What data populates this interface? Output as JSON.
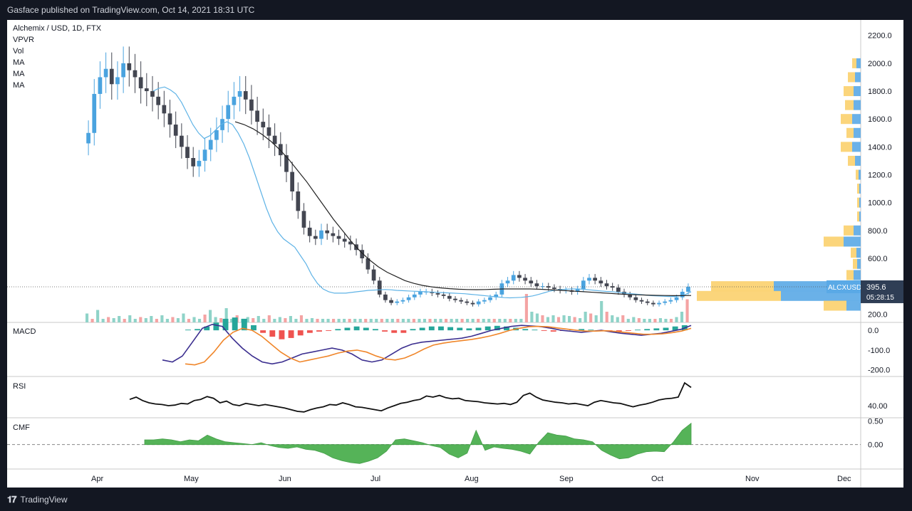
{
  "header": {
    "publisher_line": "Gasface published on TradingView.com, Oct 14, 2021 18:31 UTC"
  },
  "footer": {
    "brand": "TradingView"
  },
  "legend": {
    "symbol": "Alchemix / USD, 1D, FTX",
    "indicators": [
      "VPVR",
      "Vol",
      "MA",
      "MA",
      "MA"
    ]
  },
  "price_labels": {
    "symbol_tag": "ALCXUSD",
    "last_price": "395.6",
    "countdown": "05:28:15"
  },
  "colors": {
    "up": "#4aa3df",
    "down": "#434651",
    "ma_fast": "#5fb3e6",
    "ma_slow": "#222222",
    "macd_line": "#3b2e8f",
    "signal_line": "#f0862a",
    "vpvr_up": "#5aa9e6",
    "vpvr_down": "#f9c74f",
    "cmf_fill": "#4caf50",
    "vol_up": "#8fd3c8",
    "vol_down": "#f4a3a3"
  },
  "chart_data": [
    {
      "type": "candlestick",
      "title": "Alchemix / USD, 1D, FTX",
      "x_ticks": [
        "Apr",
        "May",
        "Jun",
        "Jul",
        "Aug",
        "Sep",
        "Oct",
        "Nov",
        "Dec"
      ],
      "y_ticks": [
        "2200.0",
        "2000.0",
        "1800.0",
        "1600.0",
        "1400.0",
        "1200.0",
        "1000.0",
        "800.0",
        "600.0",
        "400.0",
        "200.0"
      ],
      "ylim": [
        140,
        2260
      ],
      "last_price": 395.6,
      "close_series": [
        1500,
        1780,
        1900,
        1960,
        1850,
        1900,
        2000,
        1950,
        1900,
        1820,
        1800,
        1760,
        1700,
        1640,
        1560,
        1480,
        1400,
        1320,
        1260,
        1300,
        1380,
        1450,
        1520,
        1600,
        1700,
        1760,
        1800,
        1740,
        1660,
        1580,
        1540,
        1480,
        1420,
        1340,
        1220,
        1080,
        940,
        820,
        760,
        740,
        800,
        780,
        760,
        740,
        720,
        700,
        660,
        600,
        520,
        440,
        340,
        300,
        280,
        290,
        300,
        320,
        340,
        360,
        360,
        350,
        340,
        330,
        310,
        300,
        290,
        280,
        270,
        290,
        300,
        320,
        340,
        420,
        440,
        480,
        460,
        440,
        420,
        400,
        400,
        390,
        380,
        370,
        370,
        360,
        380,
        440,
        460,
        440,
        420,
        400,
        390,
        360,
        340,
        320,
        300,
        290,
        280,
        270,
        280,
        290,
        300,
        320,
        360,
        396
      ],
      "ma_fast": [
        1800,
        1820,
        1830,
        1810,
        1780,
        1720,
        1640,
        1560,
        1500,
        1460,
        1480,
        1520,
        1560,
        1580,
        1560,
        1500,
        1420,
        1320,
        1200,
        1080,
        960,
        860,
        790,
        740,
        710,
        680,
        620,
        560,
        480,
        420,
        380,
        360,
        350,
        350,
        350,
        355,
        360,
        365,
        370,
        372,
        374,
        376,
        374,
        370,
        368,
        366,
        364,
        362,
        360,
        358,
        356,
        354,
        352,
        350,
        348,
        346,
        342,
        338,
        334,
        330,
        326,
        322,
        318,
        316,
        318,
        320,
        324,
        330,
        340,
        352,
        364,
        372,
        376,
        378,
        380,
        380,
        378,
        374,
        370,
        366,
        362,
        360,
        356,
        352,
        348,
        344,
        340,
        336,
        332,
        330,
        328,
        326,
        326,
        330,
        340,
        360
      ],
      "ma_slow": [
        1580,
        1560,
        1530,
        1490,
        1440,
        1380,
        1310,
        1230,
        1150,
        1060,
        970,
        880,
        800,
        720,
        650,
        590,
        540,
        500,
        470,
        440,
        420,
        405,
        395,
        388,
        382,
        378,
        376,
        375,
        376,
        378,
        380,
        380,
        380,
        380,
        378,
        375,
        372,
        368,
        364,
        360,
        356,
        352,
        348,
        344,
        340,
        338,
        336,
        334,
        333,
        332,
        332,
        333
      ],
      "volume_relative": [
        0.25,
        0.1,
        0.35,
        0.1,
        0.15,
        0.12,
        0.18,
        0.1,
        0.2,
        0.1,
        0.15,
        0.12,
        0.18,
        0.1,
        0.2,
        0.1,
        0.15,
        0.12,
        0.25,
        0.1,
        0.15,
        0.1,
        0.22,
        0.35,
        0.15,
        0.12,
        0.4,
        0.1,
        0.2,
        0.1,
        0.15,
        0.12,
        0.18,
        0.1,
        0.2,
        0.1,
        0.15,
        0.12,
        0.18,
        0.1,
        0.2,
        0.1,
        0.12,
        0.1,
        0.1,
        0.1,
        0.1,
        0.1,
        0.1,
        0.1,
        0.1,
        0.1,
        0.1,
        0.1,
        0.1,
        0.1,
        0.1,
        0.1,
        0.1,
        0.1,
        0.1,
        0.1,
        0.1,
        0.1,
        0.1,
        0.1,
        0.1,
        0.1,
        0.1,
        0.1,
        0.1,
        0.1,
        0.1,
        0.1,
        0.1,
        0.1,
        0.1,
        0.1,
        0.1,
        0.1,
        0.1,
        0.1,
        0.8,
        0.3,
        0.25,
        0.2,
        0.15,
        0.2,
        0.15,
        0.2,
        0.18,
        0.15,
        0.12,
        0.3,
        0.25,
        0.2,
        0.6,
        0.3,
        0.2,
        0.15,
        0.2,
        0.1,
        0.15,
        0.12,
        0.1,
        0.1,
        0.1,
        0.12,
        0.1,
        0.1,
        0.15,
        0.3,
        0.65
      ]
    },
    {
      "type": "bar",
      "title": "MACD",
      "y_ticks": [
        "0.0",
        "-100.0",
        "-200.0"
      ],
      "ylim": [
        -230,
        40
      ],
      "macd": [
        -150,
        -160,
        -130,
        -60,
        10,
        30,
        20,
        -40,
        -90,
        -130,
        -160,
        -170,
        -160,
        -140,
        -120,
        -110,
        -100,
        -90,
        -100,
        -120,
        -150,
        -160,
        -150,
        -120,
        -90,
        -70,
        -60,
        -55,
        -50,
        -45,
        -40,
        -30,
        -15,
        0,
        10,
        20,
        25,
        22,
        18,
        10,
        0,
        -5,
        -10,
        -5,
        0,
        -8,
        -15,
        -20,
        -25,
        -20,
        -15,
        -5,
        5,
        25
      ],
      "signal": [
        -170,
        -175,
        -160,
        -110,
        -50,
        -10,
        10,
        0,
        -30,
        -70,
        -110,
        -140,
        -160,
        -150,
        -140,
        -130,
        -115,
        -105,
        -100,
        -110,
        -130,
        -145,
        -150,
        -140,
        -120,
        -95,
        -75,
        -65,
        -58,
        -52,
        -46,
        -38,
        -28,
        -15,
        0,
        10,
        18,
        20,
        18,
        12,
        6,
        0,
        -4,
        -4,
        -2,
        -5,
        -10,
        -15,
        -20,
        -20,
        -18,
        -12,
        -4,
        10
      ],
      "histogram": [
        0.05,
        0.1,
        0.3,
        0.6,
        0.9,
        1,
        0.9,
        0.4,
        -0.2,
        -0.5,
        -0.7,
        -0.6,
        -0.4,
        -0.2,
        -0.1,
        -0.05,
        0.1,
        0.2,
        0.3,
        0.2,
        0.1,
        -0.1,
        -0.2,
        -0.2,
        0.1,
        0.2,
        0.3,
        0.3,
        0.25,
        0.2,
        0.15,
        0.2,
        0.3,
        0.35,
        0.3,
        0.2,
        0.1,
        0.05,
        -0.05,
        -0.1,
        -0.05,
        0.05,
        0.1,
        0.05,
        -0.05,
        -0.1,
        -0.1,
        -0.05,
        0.05,
        0.1,
        0.15,
        0.2,
        0.3,
        0.4
      ]
    },
    {
      "type": "line",
      "title": "RSI",
      "y_ticks": [
        "40.00"
      ],
      "ylim": [
        20,
        90
      ],
      "values": [
        51,
        55,
        49,
        45,
        43,
        42,
        40,
        41,
        44,
        43,
        49,
        51,
        56,
        53,
        45,
        48,
        42,
        40,
        44,
        42,
        40,
        42,
        40,
        38,
        36,
        33,
        30,
        29,
        33,
        36,
        38,
        42,
        41,
        45,
        42,
        38,
        37,
        35,
        33,
        31,
        36,
        40,
        44,
        46,
        49,
        51,
        57,
        55,
        58,
        54,
        52,
        53,
        49,
        48,
        47,
        45,
        44,
        43,
        44,
        42,
        46,
        58,
        62,
        55,
        50,
        48,
        46,
        45,
        43,
        44,
        42,
        40,
        46,
        49,
        47,
        45,
        44,
        41,
        38,
        41,
        43,
        46,
        50,
        52,
        53,
        55,
        80,
        72
      ]
    },
    {
      "type": "area",
      "title": "CMF",
      "y_ticks": [
        "0.50",
        "0.00"
      ],
      "ylim": [
        -0.5,
        0.55
      ],
      "values": [
        0.1,
        0.1,
        0.12,
        0.1,
        0.06,
        0.1,
        0.08,
        0.2,
        0.12,
        0.06,
        0.04,
        0.02,
        0,
        0.04,
        -0.02,
        -0.06,
        -0.08,
        -0.05,
        -0.1,
        -0.12,
        -0.18,
        -0.28,
        -0.34,
        -0.38,
        -0.4,
        -0.35,
        -0.28,
        -0.14,
        0.1,
        0.12,
        0.08,
        0.04,
        -0.02,
        -0.06,
        -0.2,
        -0.28,
        -0.18,
        0.3,
        -0.12,
        -0.05,
        -0.08,
        -0.1,
        -0.14,
        -0.2,
        0.05,
        0.25,
        0.2,
        0.18,
        0.12,
        0.1,
        0.06,
        -0.12,
        -0.22,
        -0.3,
        -0.28,
        -0.2,
        -0.15,
        -0.14,
        -0.15,
        0.05,
        0.3,
        0.45
      ]
    }
  ]
}
